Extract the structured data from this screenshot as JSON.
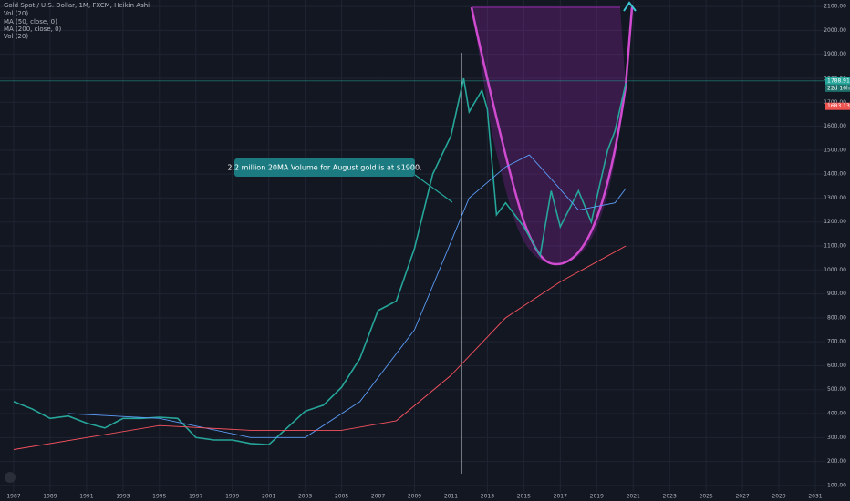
{
  "chart_data": {
    "type": "line",
    "title": "Gold Spot / U.S. Dollar, 1M, FXCM, Heikin Ashi",
    "indicators": [
      "Vol (20)",
      "MA (50, close, 0)",
      "MA (200, close, 0)",
      "Vol (20)"
    ],
    "annotation": "2.2 million 20MA Volume for August gold is at $1900.",
    "xlim": [
      1986.25,
      2031.55
    ],
    "xticks": [
      1987,
      1989,
      1991,
      1993,
      1995,
      1997,
      1999,
      2001,
      2003,
      2005,
      2007,
      2009,
      2011,
      2013,
      2015,
      2017,
      2019,
      2021,
      2023,
      2025,
      2027,
      2029,
      2031
    ],
    "ylim": [
      73,
      2127
    ],
    "yticks": [
      {
        "value": 100,
        "label": "100.00"
      },
      {
        "value": 200,
        "label": "200.00"
      },
      {
        "value": 300,
        "label": "300.00"
      },
      {
        "value": 400,
        "label": "400.00"
      },
      {
        "value": 500,
        "label": "500.00"
      },
      {
        "value": 600,
        "label": "600.00"
      },
      {
        "value": 700,
        "label": "700.00"
      },
      {
        "value": 800,
        "label": "800.00"
      },
      {
        "value": 900,
        "label": "900.00"
      },
      {
        "value": 1000,
        "label": "1000.00"
      },
      {
        "value": 1100,
        "label": "1100.00"
      },
      {
        "value": 1200,
        "label": "1200.00"
      },
      {
        "value": 1300,
        "label": "1300.00"
      },
      {
        "value": 1400,
        "label": "1400.00"
      },
      {
        "value": 1500,
        "label": "1500.00"
      },
      {
        "value": 1600,
        "label": "1600.00"
      },
      {
        "value": 1700,
        "label": "1700.00"
      },
      {
        "value": 1800,
        "label": "1800.00"
      },
      {
        "value": 1900,
        "label": "1900.00"
      },
      {
        "value": 2000,
        "label": "2000.00"
      },
      {
        "value": 2100,
        "label": "2100.00"
      }
    ],
    "grid": true,
    "last_price": 1788.91,
    "countdown": "22d 16h",
    "prev_price": 1683.13,
    "series": [
      {
        "name": "Gold Spot / U.S. Dollar, 1M, FXCM, Heikin Ashi",
        "color": "#26a69a",
        "x": [
          1987,
          1988,
          1989,
          1990,
          1991,
          1992,
          1993,
          1994,
          1995,
          1996,
          1997,
          1998,
          1999,
          2000,
          2001,
          2002,
          2003,
          2004,
          2005,
          2006,
          2007,
          2008,
          2009,
          2010,
          2011,
          2011.7,
          2012,
          2012.7,
          2013,
          2013.5,
          2014,
          2015,
          2015.9,
          2016.5,
          2017,
          2018,
          2018.7,
          2019,
          2019.6,
          2020,
          2020.6
        ],
        "values": [
          450,
          420,
          380,
          390,
          360,
          340,
          380,
          380,
          385,
          380,
          300,
          290,
          290,
          275,
          270,
          340,
          410,
          435,
          510,
          630,
          830,
          870,
          1090,
          1400,
          1560,
          1800,
          1660,
          1750,
          1670,
          1230,
          1280,
          1180,
          1060,
          1330,
          1180,
          1330,
          1200,
          1300,
          1500,
          1580,
          1780
        ]
      },
      {
        "name": "MA (50, close, 0)",
        "color": "#5b9cf6",
        "x": [
          1990,
          1995,
          2000,
          2003,
          2006,
          2009,
          2012,
          2014,
          2015.3,
          2016.5,
          2018,
          2020,
          2020.6
        ],
        "values": [
          400,
          380,
          300,
          300,
          450,
          750,
          1300,
          1430,
          1480,
          1380,
          1250,
          1280,
          1340
        ]
      },
      {
        "name": "MA (200, close, 0)",
        "color": "#f7525f",
        "x": [
          1987,
          1995,
          2000,
          2005,
          2008,
          2011,
          2014,
          2017,
          2020.6
        ],
        "values": [
          250,
          350,
          330,
          330,
          370,
          560,
          800,
          950,
          1100
        ]
      }
    ]
  }
}
